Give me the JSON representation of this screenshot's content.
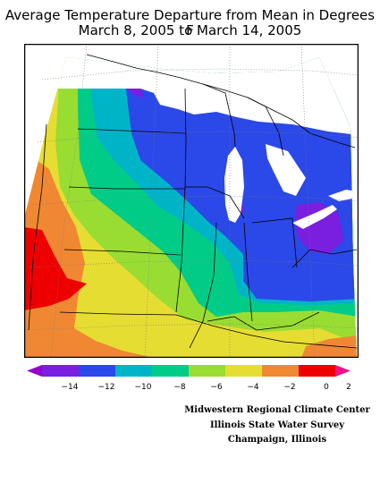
{
  "title": {
    "line1": "Average Temperature Departure from Mean in Degrees F",
    "line2": "March 8, 2005 to March 14, 2005"
  },
  "colors": {
    "c_lt_minus14": "#9900cc",
    "c_minus14_minus12": "#7a1ee0",
    "c_minus12_minus10": "#2b48e8",
    "c_minus10_minus8": "#00b4c8",
    "c_minus8_minus6": "#00cc88",
    "c_minus6_minus4": "#99dd33",
    "c_minus4_minus2": "#e6dd33",
    "c_minus2_0": "#f08833",
    "c_0_2": "#ee0000",
    "c_gt_2": "#ee1188",
    "water": "#ffffff",
    "lines": "#000000"
  },
  "legend": {
    "ticks": [
      "−14",
      "−12",
      "−10",
      "−8",
      "−6",
      "−4",
      "−2",
      "0",
      "2"
    ]
  },
  "credits": {
    "line1": "Midwestern Regional Climate Center",
    "line2": "Illinois State Water Survey",
    "line3": "Champaign, Illinois"
  }
}
